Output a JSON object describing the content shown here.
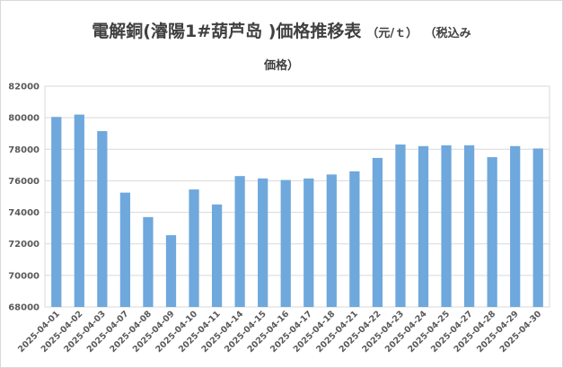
{
  "title": {
    "main": "電解銅(濬陽1#葫芦岛 )価格推移表",
    "unit": "（元/ｔ）",
    "tax_note_part1": "（税込み",
    "tax_note_part2": "価格）"
  },
  "colors": {
    "bar": "#6fa8dc",
    "grid": "#d9d9d9",
    "text": "#595959"
  },
  "chart_data": {
    "type": "bar",
    "title": "電解銅(濬陽1#葫芦岛 )価格推移表（元/ｔ）（税込み価格）",
    "xlabel": "",
    "ylabel": "",
    "ylim": [
      68000,
      82000
    ],
    "ytick_step": 2000,
    "grid": true,
    "categories": [
      "2025-04-01",
      "2025-04-02",
      "2025-04-03",
      "2025-04-07",
      "2025-04-08",
      "2025-04-09",
      "2025-04-10",
      "2025-04-11",
      "2025-04-14",
      "2025-04-15",
      "2025-04-16",
      "2025-04-17",
      "2025-04-18",
      "2025-04-21",
      "2025-04-22",
      "2025-04-23",
      "2025-04-24",
      "2025-04-25",
      "2025-04-27",
      "2025-04-28",
      "2025-04-29",
      "2025-04-30"
    ],
    "values": [
      80050,
      80200,
      79150,
      75250,
      73700,
      72550,
      75450,
      74500,
      76300,
      76150,
      76050,
      76150,
      76400,
      76600,
      77450,
      78300,
      78200,
      78250,
      78250,
      77500,
      78200,
      78050
    ]
  }
}
